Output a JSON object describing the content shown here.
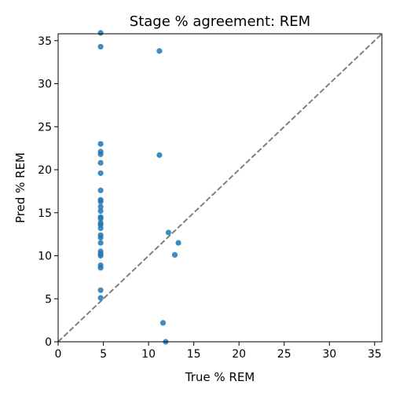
{
  "chart_data": {
    "type": "scatter",
    "title": "Stage % agreement: REM",
    "xlabel": "True % REM",
    "ylabel": "Pred % REM",
    "xlim": [
      0,
      35.8
    ],
    "ylim": [
      0,
      35.8
    ],
    "xticks": [
      0,
      5,
      10,
      15,
      20,
      25,
      30,
      35
    ],
    "yticks": [
      0,
      5,
      10,
      15,
      20,
      25,
      30,
      35
    ],
    "grid": false,
    "reference_line": {
      "style": "dashed",
      "color": "#808080",
      "from": [
        0,
        0
      ],
      "to": [
        35.8,
        35.8
      ]
    },
    "series": [
      {
        "color": "#1f77b4",
        "points": [
          [
            4.7,
            35.9
          ],
          [
            4.7,
            34.3
          ],
          [
            4.7,
            23.0
          ],
          [
            4.7,
            22.1
          ],
          [
            4.7,
            21.8
          ],
          [
            4.7,
            20.8
          ],
          [
            4.7,
            19.6
          ],
          [
            4.7,
            17.6
          ],
          [
            4.7,
            16.5
          ],
          [
            4.7,
            16.3
          ],
          [
            4.7,
            15.7
          ],
          [
            4.7,
            15.2
          ],
          [
            4.7,
            14.5
          ],
          [
            4.7,
            14.3
          ],
          [
            4.7,
            13.8
          ],
          [
            4.7,
            13.6
          ],
          [
            4.7,
            13.2
          ],
          [
            4.7,
            12.4
          ],
          [
            4.7,
            12.1
          ],
          [
            4.7,
            11.5
          ],
          [
            4.7,
            10.5
          ],
          [
            4.7,
            10.2
          ],
          [
            4.7,
            10.0
          ],
          [
            4.7,
            8.9
          ],
          [
            4.7,
            8.6
          ],
          [
            4.7,
            6.0
          ],
          [
            4.7,
            5.1
          ],
          [
            11.2,
            33.8
          ],
          [
            11.2,
            21.7
          ],
          [
            12.2,
            12.7
          ],
          [
            13.3,
            11.5
          ],
          [
            12.9,
            10.1
          ],
          [
            11.6,
            2.2
          ],
          [
            11.9,
            0.0
          ]
        ]
      }
    ]
  }
}
